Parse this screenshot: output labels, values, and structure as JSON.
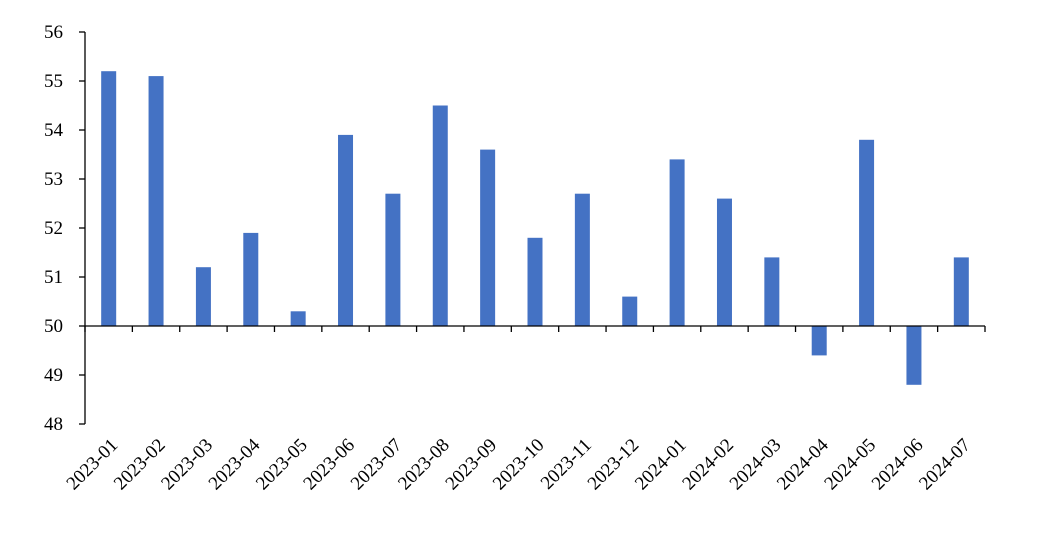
{
  "chart_data": {
    "type": "bar",
    "title": "",
    "xlabel": "",
    "ylabel": "",
    "ylim": [
      48,
      56
    ],
    "yticks": [
      48,
      49,
      50,
      51,
      52,
      53,
      54,
      55,
      56
    ],
    "baseline": 50,
    "grid": false,
    "legend": "none",
    "bar_color": "#4472C4",
    "categories": [
      "2023-01",
      "2023-02",
      "2023-03",
      "2023-04",
      "2023-05",
      "2023-06",
      "2023-07",
      "2023-08",
      "2023-09",
      "2023-10",
      "2023-11",
      "2023-12",
      "2024-01",
      "2024-02",
      "2024-03",
      "2024-04",
      "2024-05",
      "2024-06",
      "2024-07"
    ],
    "values": [
      55.2,
      55.1,
      51.2,
      51.9,
      50.3,
      53.9,
      52.7,
      54.5,
      53.6,
      51.8,
      52.7,
      50.6,
      53.4,
      52.6,
      51.4,
      49.4,
      53.8,
      48.8,
      51.4
    ]
  }
}
